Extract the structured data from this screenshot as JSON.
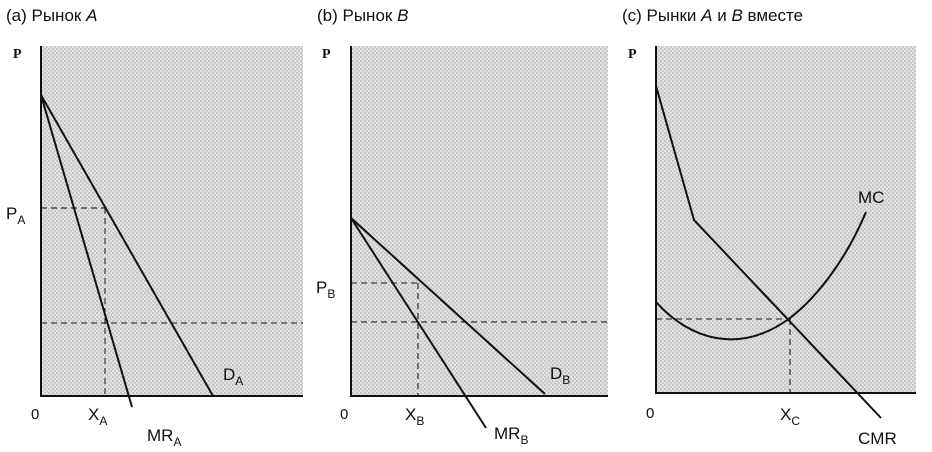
{
  "panels": [
    {
      "title_prefix": "(a) Рынок ",
      "title_italic": "A",
      "y_axis": "P",
      "origin": "0",
      "price_label": "P",
      "price_sub": "A",
      "quantity_label": "X",
      "quantity_sub": "A",
      "demand_label": "D",
      "demand_sub": "A",
      "mr_label": "MR",
      "mr_sub": "A"
    },
    {
      "title_prefix": "(b) Рынок ",
      "title_italic": "B",
      "y_axis": "P",
      "origin": "0",
      "price_label": "P",
      "price_sub": "B",
      "quantity_label": "X",
      "quantity_sub": "B",
      "demand_label": "D",
      "demand_sub": "B",
      "mr_label": "MR",
      "mr_sub": "B"
    },
    {
      "title_prefix": "(c) Рынки ",
      "title_italic_1": "A",
      "title_mid": " и ",
      "title_italic_2": "B",
      "title_suffix": " вместе",
      "y_axis": "P",
      "origin": "0",
      "quantity_label": "X",
      "quantity_sub": "C",
      "mc_label": "MC",
      "cmr_label": "CMR"
    }
  ],
  "colors": {
    "background": "#ffffff",
    "plot_fill": "#e2e2e2",
    "dots": "#9a9a9a",
    "line": "#111111"
  }
}
